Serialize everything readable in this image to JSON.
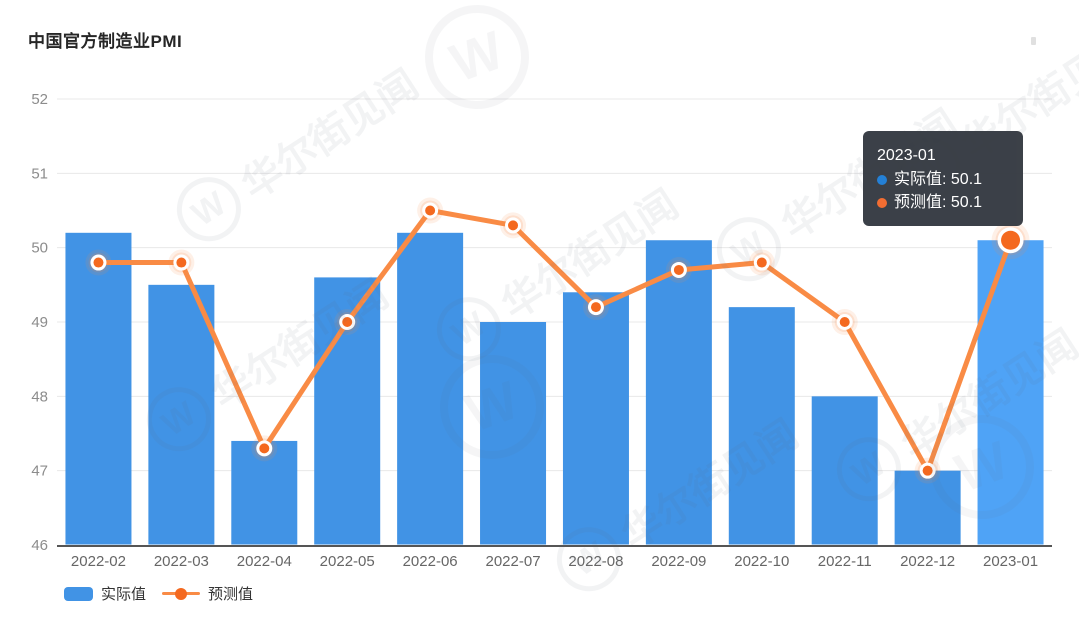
{
  "title": "中国官方制造业PMI",
  "chart_data": {
    "type": "bar",
    "subtype": "bar-line-combo",
    "title": "中国官方制造业PMI",
    "categories": [
      "2022-02",
      "2022-03",
      "2022-04",
      "2022-05",
      "2022-06",
      "2022-07",
      "2022-08",
      "2022-09",
      "2022-10",
      "2022-11",
      "2022-12",
      "2023-01"
    ],
    "series": [
      {
        "name": "实际值",
        "type": "bar",
        "values": [
          50.2,
          49.5,
          47.4,
          49.6,
          50.2,
          49.0,
          49.4,
          50.1,
          49.2,
          48.0,
          47.0,
          50.1
        ]
      },
      {
        "name": "预测值",
        "type": "line",
        "values": [
          49.8,
          49.8,
          47.3,
          49.0,
          50.5,
          50.3,
          49.2,
          49.7,
          49.8,
          49.0,
          47.0,
          50.1
        ]
      }
    ],
    "xlabel": "",
    "ylabel": "",
    "ylim": [
      46,
      52
    ],
    "ytick_step": 1,
    "grid": true,
    "legend_position": "bottom",
    "highlighted_category": "2023-01",
    "highlighted_index": 11
  },
  "colors": {
    "bar": "#4193E5",
    "bar_highlight": "#4FA3F6",
    "line": "#F98B45",
    "point": "#F4691F",
    "grid": "#E8E8E8",
    "axis": "#555555",
    "x_label": "#666666",
    "y_label": "#8C8C8C",
    "title": "#262626",
    "legend_text": "#333333",
    "tooltip_bg": "#343941",
    "tooltip_text": "#FFFFFF",
    "watermark": "#5F6B7A"
  },
  "tooltip": {
    "title": "2023-01",
    "rows": [
      {
        "text": "实际值: 50.1",
        "color": "#1C7CD5"
      },
      {
        "text": "预测值: 50.1",
        "color": "#F2682A"
      }
    ]
  },
  "legend": {
    "items": [
      {
        "label": "实际值"
      },
      {
        "label": "预测值"
      }
    ]
  },
  "watermark": {
    "text": "华尔街见闻",
    "logo": "W"
  }
}
